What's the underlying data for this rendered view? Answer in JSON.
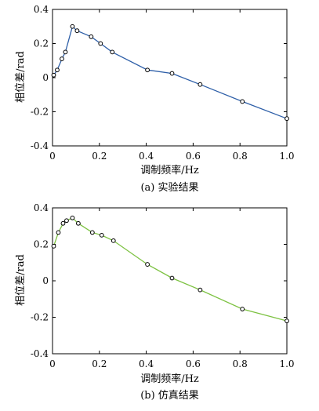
{
  "chart_data": [
    {
      "type": "line",
      "caption": "(a) 实验结果",
      "xlabel": "调制频率/Hz",
      "ylabel": "相位差/rad",
      "xlim": [
        0,
        1.0
      ],
      "ylim": [
        -0.4,
        0.4
      ],
      "xticks": [
        "0",
        "0.2",
        "0.4",
        "0.6",
        "0.8",
        "1.0"
      ],
      "yticks": [
        "0.4",
        "0.2",
        "0",
        "-0.2",
        "-0.4"
      ],
      "series": [
        {
          "color": "#2e5fa8",
          "x": [
            0.005,
            0.02,
            0.04,
            0.055,
            0.085,
            0.105,
            0.165,
            0.205,
            0.255,
            0.405,
            0.51,
            0.63,
            0.81,
            1.0
          ],
          "y": [
            0.015,
            0.045,
            0.11,
            0.15,
            0.3,
            0.275,
            0.24,
            0.2,
            0.15,
            0.045,
            0.025,
            -0.04,
            -0.14,
            -0.24
          ]
        }
      ]
    },
    {
      "type": "line",
      "caption": "(b) 仿真结果",
      "xlabel": "调制频率/Hz",
      "ylabel": "相位差/rad",
      "xlim": [
        0,
        1.0
      ],
      "ylim": [
        -0.4,
        0.4
      ],
      "xticks": [
        "0",
        "0.2",
        "0.4",
        "0.6",
        "0.8",
        "1.0"
      ],
      "yticks": [
        "0.4",
        "0.2",
        "0",
        "-0.2",
        "-0.4"
      ],
      "series": [
        {
          "color": "#7dc242",
          "x": [
            0.005,
            0.025,
            0.045,
            0.06,
            0.085,
            0.11,
            0.17,
            0.21,
            0.26,
            0.405,
            0.51,
            0.63,
            0.81,
            1.0
          ],
          "y": [
            0.19,
            0.265,
            0.315,
            0.33,
            0.345,
            0.315,
            0.265,
            0.25,
            0.22,
            0.09,
            0.015,
            -0.05,
            -0.155,
            -0.22
          ]
        }
      ]
    }
  ]
}
